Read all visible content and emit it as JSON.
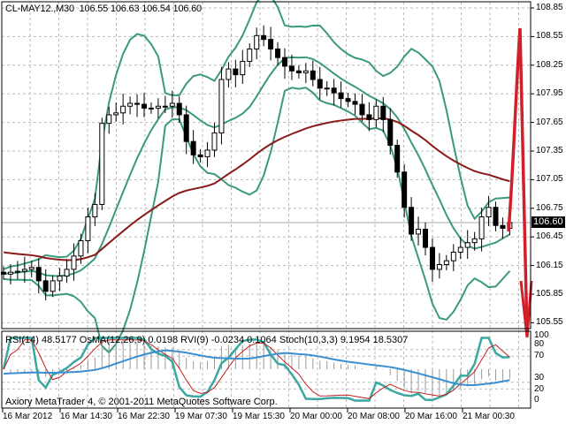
{
  "header": {
    "symbol": "CL-MAY12.,M30",
    "ohlc": "106.55 106.63 106.54 106.60"
  },
  "indicator_header": "RSI(14) 48.5177  OsMA(12,26,9) 0.0198  RVI(9) -0.0234 0.1064  Stoch(10,3,3) 9.1954 18.5307",
  "copyright": "Axiory MetaTrader 4, © 2001-2011 MetaQuotes Software Corp.",
  "current_price": "106.60",
  "colors": {
    "bands": "#3a9a7a",
    "ma": "#8b1a1a",
    "arrow": "#d0202a",
    "rsi": "#3aa8a0",
    "stoch_main": "#c02020",
    "osma": "#9a9a9a"
  },
  "chart_data": {
    "type": "candlestick",
    "price_ticks": [
      "108.85",
      "108.55",
      "108.25",
      "107.95",
      "107.65",
      "107.35",
      "107.05",
      "106.75",
      "106.45",
      "106.15",
      "105.85",
      "105.55"
    ],
    "ylim": [
      105.52,
      108.95
    ],
    "time_ticks": [
      "16 Mar 2012",
      "16 Mar 14:30",
      "16 Mar 22:30",
      "19 Mar 07:30",
      "19 Mar 15:30",
      "20 Mar 00:00",
      "20 Mar 08:00",
      "20 Mar 16:00",
      "21 Mar 00:30"
    ],
    "indicator_ticks": [
      "100",
      "80",
      "70",
      "30",
      "20",
      "0"
    ],
    "indicator_ylim": [
      0,
      100
    ],
    "closes": [
      106.06,
      106.08,
      106.09,
      106.11,
      106.13,
      105.99,
      105.88,
      105.99,
      106.04,
      106.11,
      106.25,
      106.41,
      106.66,
      106.79,
      107.64,
      107.73,
      107.75,
      107.82,
      107.85,
      107.84,
      107.8,
      107.8,
      107.82,
      107.82,
      107.85,
      107.73,
      107.45,
      107.31,
      107.29,
      107.36,
      107.54,
      108.1,
      108.21,
      108.15,
      108.29,
      108.42,
      108.56,
      108.52,
      108.42,
      108.33,
      108.24,
      108.19,
      108.17,
      108.19,
      108.1,
      108.01,
      108.01,
      107.96,
      107.9,
      107.87,
      107.84,
      107.73,
      107.68,
      107.82,
      107.68,
      107.41,
      107.13,
      106.76,
      106.48,
      106.53,
      106.34,
      106.11,
      106.16,
      106.2,
      106.29,
      106.34,
      106.39,
      106.43,
      106.66,
      106.76,
      106.57,
      106.54,
      106.6
    ],
    "grid": true,
    "annotation": "red hand-drawn arrow up to ~108.65 then down to ~105.65"
  }
}
